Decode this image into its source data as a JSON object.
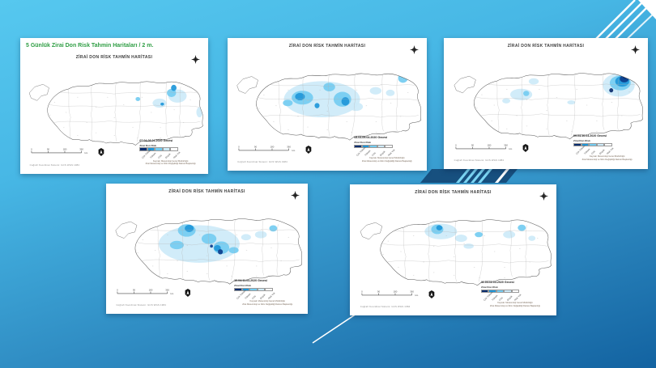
{
  "slide": {
    "title": "5 Günlük Zirai Don Risk Tahmin Haritaları / 2 m.",
    "title_color": "#2f9e44",
    "background_top": "#56c8ef",
    "background_bottom": "#1363a1"
  },
  "map_common": {
    "title": "ZİRAİ DON RİSK TAHMİN HARİTASI",
    "legend_title": "Zirai Don Risk",
    "legend_colors": [
      "#0a2d6e",
      "#1f97d9",
      "#74ccf1",
      "#cdeaf8",
      "#ffffff"
    ],
    "legend_categories": [
      "Çok Yüksek",
      "Yüksek",
      "Orta",
      "Düşük",
      "Risk Yok"
    ],
    "source_line1": "Kaynak: Meteoroloji Genel Müdürlüğü",
    "source_line2": "Zirai Meteoroloji ve İklim Değişikliği Dairesi Başkanlığı",
    "scale_ticks": [
      "0",
      "90",
      "180",
      "360"
    ],
    "scale_unit": "km",
    "datum_note": "Coğrafi Koordinat Sistemi: GCS WGS 1984",
    "tone_colors": {
      "l": "#cdeaf8",
      "m": "#74ccf1",
      "s": "#1f97d9",
      "d": "#0b3e8d",
      "n": "#0a2d6e"
    }
  },
  "maps": [
    {
      "date_label": "07.04-08.04.2020 Gecesi",
      "blobs": [
        [
          338,
          68,
          20,
          13,
          "l"
        ],
        [
          299,
          82,
          15,
          9,
          "l"
        ],
        [
          386,
          100,
          7,
          10,
          "l"
        ],
        [
          325,
          62,
          10,
          8,
          "m"
        ],
        [
          252,
          74,
          5,
          4,
          "m"
        ],
        [
          330,
          52,
          6,
          6,
          "s"
        ],
        [
          305,
          84,
          4,
          3,
          "s"
        ]
      ]
    },
    {
      "date_label": "08.04-09.04.2020 Gecesi",
      "blobs": [
        [
          190,
          88,
          78,
          34,
          "l"
        ],
        [
          300,
          72,
          12,
          7,
          "l"
        ],
        [
          260,
          102,
          14,
          8,
          "l"
        ],
        [
          330,
          76,
          9,
          6,
          "l"
        ],
        [
          150,
          85,
          22,
          13,
          "m"
        ],
        [
          232,
          88,
          18,
          14,
          "m"
        ],
        [
          205,
          65,
          12,
          8,
          "m"
        ],
        [
          120,
          95,
          10,
          6,
          "m"
        ],
        [
          356,
          48,
          10,
          9,
          "m"
        ],
        [
          145,
          83,
          10,
          7,
          "s"
        ],
        [
          238,
          92,
          8,
          8,
          "s"
        ],
        [
          180,
          100,
          5,
          5,
          "s"
        ]
      ]
    },
    {
      "date_label": "09.04-10.04.2020 Gecesi",
      "blobs": [
        [
          345,
          62,
          32,
          22,
          "l"
        ],
        [
          150,
          80,
          22,
          11,
          "l"
        ],
        [
          175,
          55,
          10,
          6,
          "l"
        ],
        [
          120,
          92,
          8,
          5,
          "l"
        ],
        [
          250,
          95,
          8,
          4,
          "l"
        ],
        [
          348,
          58,
          21,
          14,
          "m"
        ],
        [
          160,
          78,
          6,
          5,
          "m"
        ],
        [
          352,
          55,
          14,
          10,
          "s"
        ],
        [
          356,
          50,
          9,
          7,
          "d"
        ],
        [
          358,
          46,
          5,
          4,
          "n"
        ],
        [
          330,
          72,
          4,
          4,
          "n"
        ]
      ]
    },
    {
      "date_label": "10.04-11.04.2020 Gecesi",
      "blobs": [
        [
          185,
          88,
          82,
          36,
          "l"
        ],
        [
          310,
          70,
          12,
          7,
          "l"
        ],
        [
          280,
          75,
          10,
          6,
          "l"
        ],
        [
          160,
          62,
          18,
          12,
          "m"
        ],
        [
          205,
          78,
          15,
          10,
          "m"
        ],
        [
          230,
          95,
          16,
          12,
          "m"
        ],
        [
          140,
          90,
          14,
          8,
          "m"
        ],
        [
          335,
          58,
          8,
          6,
          "m"
        ],
        [
          255,
          100,
          10,
          6,
          "m"
        ],
        [
          165,
          58,
          9,
          7,
          "s"
        ],
        [
          222,
          96,
          7,
          6,
          "s"
        ],
        [
          228,
          103,
          5,
          5,
          "d"
        ],
        [
          210,
          92,
          3,
          3,
          "d"
        ]
      ]
    },
    {
      "date_label": "11.04-12.04.2020 Gecesi",
      "blobs": [
        [
          175,
          62,
          32,
          15,
          "l"
        ],
        [
          215,
          75,
          12,
          7,
          "l"
        ],
        [
          310,
          68,
          12,
          7,
          "l"
        ],
        [
          355,
          75,
          7,
          5,
          "l"
        ],
        [
          230,
          90,
          10,
          5,
          "l"
        ],
        [
          168,
          58,
          12,
          9,
          "m"
        ],
        [
          250,
          68,
          8,
          5,
          "m"
        ],
        [
          335,
          55,
          8,
          6,
          "m"
        ],
        [
          172,
          55,
          6,
          5,
          "s"
        ]
      ]
    }
  ]
}
